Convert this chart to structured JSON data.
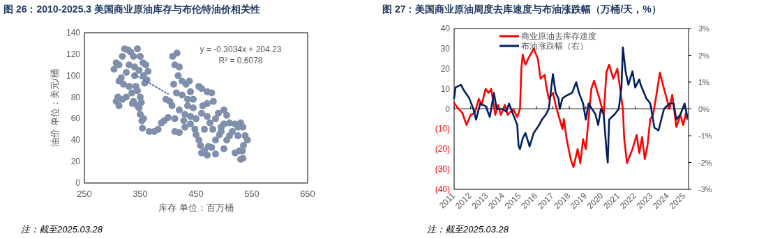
{
  "chart_data": [
    {
      "type": "scatter",
      "title": "图 26：2010-2025.3 美国商业原油库存与布伦特油价相关性",
      "xlabel": "库存 单位：百万桶",
      "ylabel": "油价 单位：美元/桶",
      "xlim": [
        250,
        650
      ],
      "xticks": [
        250,
        350,
        450,
        550,
        650
      ],
      "ylim": [
        0,
        140
      ],
      "yticks": [
        0,
        20,
        40,
        60,
        80,
        100,
        120,
        140
      ],
      "grid": false,
      "legend": false,
      "marker": "circle",
      "annotations": [
        "y = -0.3034x + 204.23",
        "R² = 0.6078",
        "注：截至2025.03.28"
      ],
      "series": [
        {
          "color": "#7f8fac",
          "x": [
            303,
            307,
            312,
            318,
            322,
            328,
            333,
            338,
            345,
            350,
            355,
            360,
            364,
            362,
            356,
            348,
            340,
            330,
            325,
            316,
            312,
            320,
            330,
            340,
            358,
            310,
            307,
            312,
            318,
            325,
            335,
            338,
            342,
            345,
            350,
            352,
            345,
            336,
            348,
            350,
            353,
            356,
            354,
            366,
            375,
            382,
            388,
            393,
            400,
            396,
            403,
            408,
            416,
            412,
            420,
            418,
            410,
            425,
            432,
            438,
            415,
            425,
            440,
            455,
            460,
            470,
            478,
            481,
            407,
            412,
            420,
            430,
            435,
            445,
            450,
            460,
            470,
            475,
            490,
            500,
            505,
            412,
            420,
            430,
            440,
            448,
            455,
            458,
            460,
            465,
            470,
            472,
            478,
            485,
            492,
            495,
            500,
            505,
            500,
            510,
            515,
            520,
            525,
            530,
            534,
            520,
            528,
            533,
            530,
            534,
            535,
            538,
            542,
            485,
            480,
            465,
            450,
            440,
            428,
            435,
            445,
            462,
            470,
            485,
            495,
            510,
            525
          ],
          "values": [
            106,
            112,
            110,
            118,
            125,
            124,
            122,
            118,
            125,
            118,
            112,
            110,
            104,
            96,
            100,
            105,
            108,
            110,
            103,
            98,
            95,
            92,
            90,
            100,
            93,
            80,
            76,
            72,
            78,
            80,
            84,
            76,
            90,
            86,
            80,
            75,
            72,
            74,
            70,
            64,
            58,
            60,
            51,
            48,
            48,
            50,
            56,
            58,
            61,
            78,
            76,
            118,
            121,
            110,
            108,
            100,
            92,
            95,
            92,
            95,
            84,
            82,
            85,
            90,
            88,
            85,
            84,
            76,
            72,
            60,
            68,
            64,
            72,
            70,
            60,
            65,
            62,
            56,
            65,
            68,
            63,
            48,
            47,
            52,
            55,
            50,
            40,
            35,
            28,
            30,
            26,
            34,
            33,
            27,
            45,
            52,
            55,
            40,
            32,
            56,
            48,
            55,
            52,
            56,
            52,
            28,
            30,
            30,
            22,
            23,
            35,
            44,
            40,
            40,
            50,
            50,
            45,
            62,
            58,
            78,
            78,
            72,
            74,
            60,
            48,
            44,
            44
          ]
        },
        {
          "type": "line",
          "color": "#4472c4",
          "line_style": "dotted",
          "marker": "none",
          "x": [
            340,
            400
          ],
          "values": [
            101.1,
            82.9
          ]
        }
      ]
    },
    {
      "type": "line",
      "title": "图 27：美国商业原油周度去库速度与布油涨跌幅（万桶/天，%）",
      "legend": "top",
      "grid": false,
      "marker": "none",
      "line_style": "solid",
      "xlim": [
        "2011-01",
        "2025-03-28"
      ],
      "xticks": [
        "2011",
        "2012",
        "2013",
        "2014",
        "2015",
        "2016",
        "2017",
        "2018",
        "2019",
        "2020",
        "2021",
        "2022",
        "2023",
        "2024",
        "2025"
      ],
      "ylim": [
        -40,
        40
      ],
      "yticks": [
        {
          "value": -40,
          "label": "(40)"
        },
        {
          "value": -30,
          "label": "(30)"
        },
        {
          "value": -20,
          "label": "(20)"
        },
        {
          "value": -10,
          "label": "(10)"
        },
        0,
        10,
        20,
        30,
        40
      ],
      "y2lim": [
        -3,
        3
      ],
      "y2ticks": [
        {
          "value": -3,
          "label": "-3%"
        },
        {
          "value": -2,
          "label": "-2%"
        },
        {
          "value": -1,
          "label": "-1%"
        },
        {
          "value": 0,
          "label": "0%"
        },
        {
          "value": 1,
          "label": "1%"
        },
        {
          "value": 2,
          "label": "2%"
        },
        {
          "value": 3,
          "label": "3%"
        }
      ],
      "ref_lines": [
        {
          "axis": "y",
          "value": 0,
          "color": "#000000"
        }
      ],
      "annotations": [
        "注：截至2025.03.28"
      ],
      "series": [
        {
          "name": "商业原油去库存速度",
          "color": "#ff0000",
          "x": [
            "2011-01",
            "2011-03",
            "2011-07",
            "2011-10",
            "2012-01",
            "2012-04",
            "2012-07",
            "2012-09",
            "2012-12",
            "2013-02",
            "2013-04",
            "2013-07",
            "2013-09",
            "2013-11",
            "2014-02",
            "2014-04",
            "2014-08",
            "2014-11",
            "2015-01",
            "2015-02",
            "2015-03",
            "2015-05",
            "2015-07",
            "2015-11",
            "2016-02",
            "2016-04",
            "2016-07",
            "2016-08",
            "2016-10",
            "2017-01",
            "2017-03",
            "2017-05",
            "2017-08",
            "2017-09",
            "2017-11",
            "2018-02",
            "2018-04",
            "2018-07",
            "2018-09",
            "2018-11",
            "2019-01",
            "2019-03",
            "2019-05",
            "2019-07",
            "2019-11",
            "2020-02",
            "2020-04",
            "2020-06",
            "2020-09",
            "2020-12",
            "2021-02",
            "2021-04",
            "2021-05",
            "2021-07",
            "2021-11",
            "2022-02",
            "2022-04",
            "2022-06",
            "2022-08",
            "2022-10",
            "2022-12",
            "2023-02",
            "2023-04",
            "2023-07",
            "2023-10",
            "2024-02",
            "2024-04",
            "2024-07",
            "2024-10",
            "2024-12",
            "2025-02",
            "2025-03"
          ],
          "values": [
            3,
            1,
            -2,
            -8,
            -3,
            -2,
            5,
            2,
            10,
            8,
            10,
            -3,
            2,
            -3,
            2,
            -3,
            0,
            -4,
            0,
            20,
            27,
            22,
            25,
            30,
            25,
            15,
            17,
            12,
            5,
            8,
            2,
            -3,
            -10,
            -5,
            -15,
            -25,
            -29,
            -20,
            -27,
            -15,
            -20,
            -5,
            10,
            14,
            5,
            -3,
            18,
            22,
            15,
            20,
            10,
            0,
            -15,
            -27,
            -20,
            -13,
            -22,
            -14,
            -25,
            -18,
            -5,
            -3,
            5,
            18,
            10,
            0,
            7,
            -9,
            -3,
            -8,
            -2,
            -5
          ]
        },
        {
          "name": "布油涨跌幅（右）",
          "color": "#002060",
          "axis": "y2",
          "x": [
            "2011-01",
            "2011-02",
            "2011-06",
            "2011-08",
            "2011-12",
            "2012-03",
            "2012-05",
            "2012-08",
            "2012-12",
            "2013-03",
            "2013-06",
            "2013-08",
            "2013-12",
            "2014-03",
            "2014-05",
            "2014-08",
            "2014-11",
            "2014-12",
            "2015-01",
            "2015-03",
            "2015-05",
            "2015-08",
            "2015-11",
            "2016-03",
            "2016-05",
            "2016-08",
            "2016-10",
            "2017-01",
            "2017-03",
            "2017-05",
            "2017-06",
            "2017-08",
            "2017-11",
            "2018-03",
            "2018-06",
            "2018-08",
            "2018-11",
            "2019-01",
            "2019-03",
            "2019-08",
            "2019-10",
            "2019-12",
            "2020-02",
            "2020-04",
            "2020-05",
            "2020-06",
            "2020-10",
            "2021-01",
            "2021-03",
            "2021-04",
            "2021-06",
            "2021-08",
            "2021-11",
            "2022-01",
            "2022-04",
            "2022-05",
            "2022-09",
            "2022-12",
            "2023-03",
            "2023-06",
            "2023-08",
            "2023-10",
            "2024-02",
            "2024-05",
            "2024-07",
            "2024-10",
            "2025-01",
            "2025-03"
          ],
          "values": [
            0.4,
            0.8,
            0.9,
            0.7,
            0.4,
            0,
            -0.4,
            0.2,
            0.1,
            -0.3,
            0.6,
            0,
            0,
            -0.1,
            0.2,
            -0.2,
            -0.6,
            -1.4,
            -1.5,
            -1.1,
            -0.9,
            -1.4,
            -0.9,
            -0.6,
            -0.4,
            -0.2,
            0,
            1.3,
            0.6,
            0.4,
            0,
            0.4,
            0.5,
            0.6,
            1,
            0.6,
            0.2,
            -0.4,
            0.2,
            -0.2,
            -0.6,
            0,
            -0.2,
            -1.5,
            -2,
            -0.4,
            -0.2,
            0,
            0.8,
            2.3,
            1.4,
            0.9,
            1.4,
            0.8,
            1.1,
            0.9,
            0.4,
            0.2,
            -0.7,
            -0.8,
            -0.4,
            0,
            0.2,
            0.2,
            -0.4,
            -0.2,
            0.2,
            -0.3
          ]
        }
      ]
    }
  ]
}
